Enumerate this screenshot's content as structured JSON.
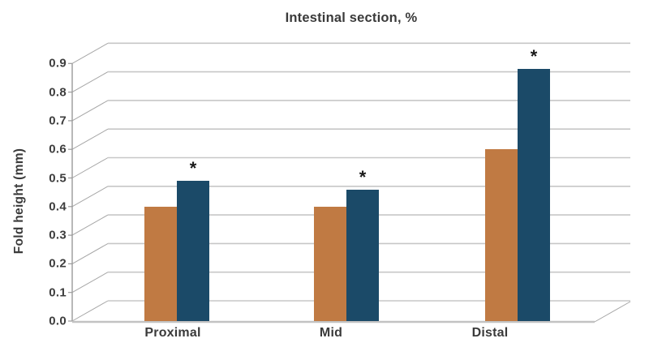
{
  "chart_data": {
    "type": "bar",
    "style": "3d-oblique-clustered-columns",
    "title": "Intestinal section, %",
    "xlabel": "",
    "ylabel": "Fold height (mm)",
    "categories": [
      "Proximal",
      "Mid",
      "Distal"
    ],
    "series": [
      {
        "name": "orange-series",
        "color": "#C07A43",
        "values": [
          0.4,
          0.4,
          0.6
        ],
        "significance": [
          false,
          false,
          false
        ]
      },
      {
        "name": "blue-series",
        "color": "#1B4A68",
        "values": [
          0.49,
          0.46,
          0.88
        ],
        "significance": [
          true,
          true,
          true
        ]
      }
    ],
    "significance_marker": "*",
    "ylim": [
      0.0,
      0.9
    ],
    "ytick_step": 0.1,
    "ytick_labels": [
      "0.0",
      "0.1",
      "0.2",
      "0.3",
      "0.4",
      "0.5",
      "0.6",
      "0.7",
      "0.8",
      "0.9"
    ],
    "grid": true,
    "legend": "none"
  },
  "colors": {
    "background": "#ffffff",
    "text": "#3a3a3a",
    "gridline": "#c7c7c7",
    "diagonal": "#a6a6a6",
    "axis": "#9a9a9a",
    "baseline": "#c2c2c2",
    "marker": "#1a1a1a"
  }
}
